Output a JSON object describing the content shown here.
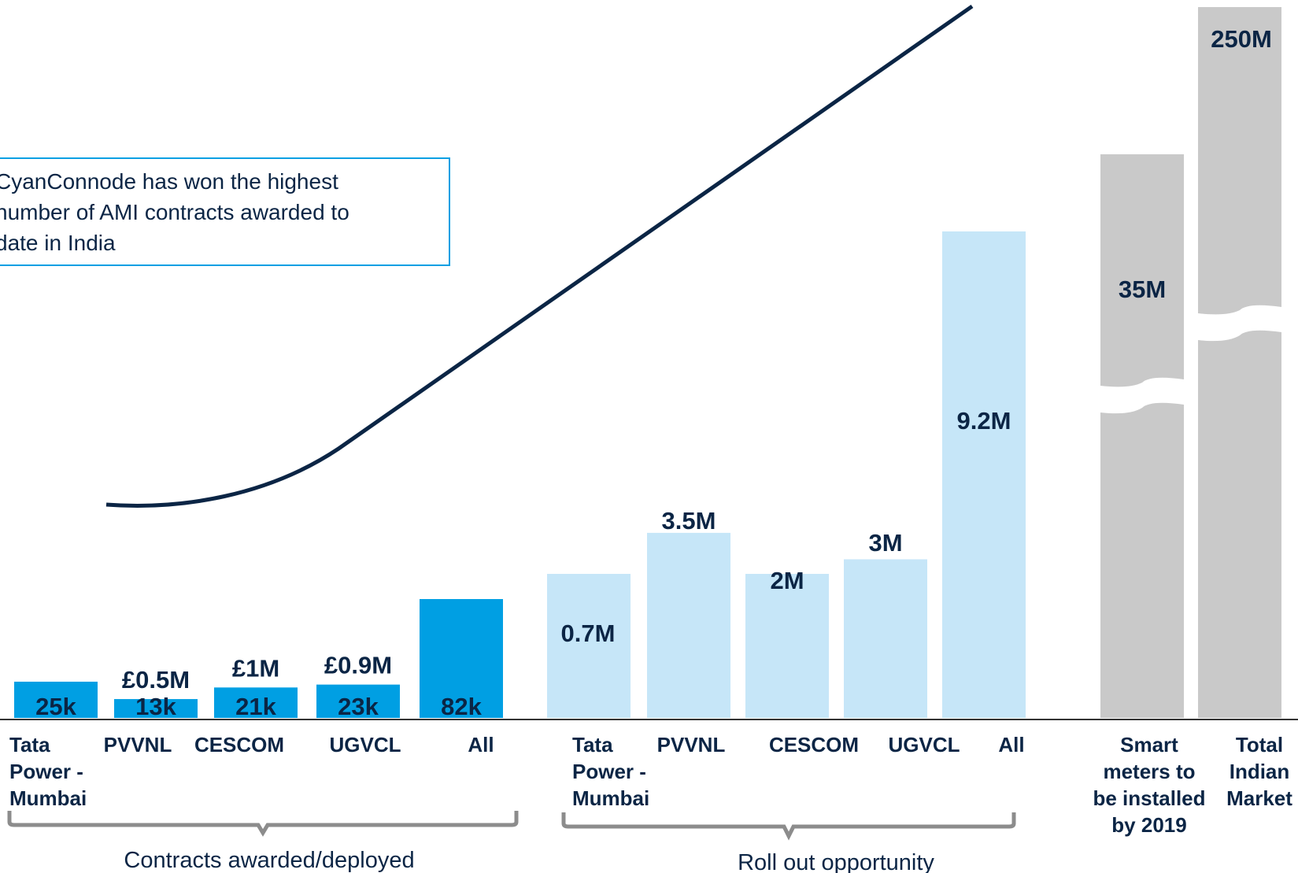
{
  "colors": {
    "deployed": "#009fe3",
    "rollout": "#c6e6f8",
    "market": "#c9c9c9",
    "text_dark": "#0b2545",
    "curve": "#0b2545",
    "callout_border": "#009fe3",
    "bracket": "#8c8c8c",
    "axis": "#333333"
  },
  "callout": {
    "lines": [
      "CyanConnode has won the highest",
      "number of AMI contracts awarded to",
      "date in India"
    ]
  },
  "chart_data": {
    "type": "bar",
    "title": "",
    "xlabel": "",
    "ylabel": "",
    "groups": [
      {
        "name": "Contracts awarded/deployed",
        "bars": [
          {
            "category": [
              "Tata",
              "Power -",
              "Mumbai"
            ],
            "units_label": "25k",
            "units": 25000,
            "value_label": ""
          },
          {
            "category": [
              "PVVNL"
            ],
            "units_label": "13k",
            "units": 13000,
            "value_label": "£0.5M"
          },
          {
            "category": [
              "CESCOM"
            ],
            "units_label": "21k",
            "units": 21000,
            "value_label": "£1M"
          },
          {
            "category": [
              "UGVCL"
            ],
            "units_label": "23k",
            "units": 23000,
            "value_label": "£0.9M"
          },
          {
            "category": [
              "All"
            ],
            "units_label": "82k",
            "units": 82000,
            "value_label": ""
          }
        ]
      },
      {
        "name": "Roll out opportunity",
        "bars": [
          {
            "category": [
              "Tata",
              "Power -",
              "Mumbai"
            ],
            "value_label": "0.7M",
            "value": 700000
          },
          {
            "category": [
              "PVVNL"
            ],
            "value_label": "3.5M",
            "value": 3500000
          },
          {
            "category": [
              "CESCOM"
            ],
            "value_label": "2M",
            "value": 2000000
          },
          {
            "category": [
              "UGVCL"
            ],
            "value_label": "3M",
            "value": 3000000
          },
          {
            "category": [
              "All"
            ],
            "value_label": "9.2M",
            "value": 9200000
          }
        ]
      },
      {
        "name": "",
        "bars": [
          {
            "category": [
              "Smart",
              "meters to",
              "be installed",
              "by 2019"
            ],
            "value_label": "35M",
            "value": 35000000,
            "broken_axis": true
          },
          {
            "category": [
              "Total",
              "Indian",
              "Market"
            ],
            "value_label": "250M",
            "value": 250000000,
            "broken_axis": true
          }
        ]
      }
    ]
  }
}
